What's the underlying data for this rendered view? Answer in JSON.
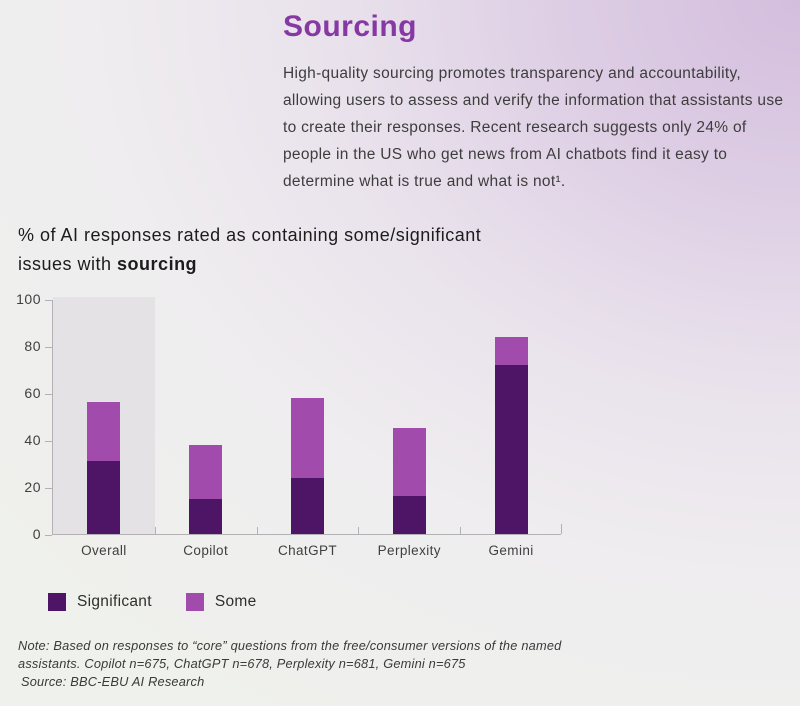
{
  "header": {
    "title": "Sourcing",
    "intro": "High-quality sourcing promotes transparency and accountability, allowing users to assess and verify the information that assistants use to create their responses. Recent research suggests only 24% of people in the US who get news from AI chatbots find it easy to determine what is true and what is not¹."
  },
  "chart_heading": {
    "line1": "% of AI responses rated as containing some/significant",
    "line2_prefix": "issues with ",
    "line2_bold": "sourcing"
  },
  "chart_data": {
    "type": "bar",
    "stacked": true,
    "title": "% of AI responses rated as containing some/significant issues with sourcing",
    "xlabel": "",
    "ylabel": "",
    "categories": [
      "Overall",
      "Copilot",
      "ChatGPT",
      "Perplexity",
      "Gemini"
    ],
    "series": [
      {
        "name": "Significant",
        "color": "#4e1566",
        "values": [
          31,
          15,
          24,
          16,
          72
        ]
      },
      {
        "name": "Some",
        "color": "#a14cad",
        "values": [
          25,
          23,
          34,
          29,
          12
        ]
      }
    ],
    "totals": [
      56,
      38,
      58,
      45,
      84
    ],
    "ylim": [
      0,
      100
    ],
    "yticks": [
      0,
      20,
      40,
      60,
      80,
      100
    ],
    "grid": false,
    "legend_position": "bottom-left",
    "highlighted_category": "Overall",
    "highlight_color": "#e4e2e5"
  },
  "legend": {
    "items": [
      {
        "label": "Significant",
        "color": "#4e1566"
      },
      {
        "label": "Some",
        "color": "#a14cad"
      }
    ]
  },
  "footnote": {
    "note_line1": "Note: Based on responses to “core” questions from the free/consumer versions of the named",
    "note_line2": "assistants. Copilot n=675, ChatGPT n=678, Perplexity n=681, Gemini n=675",
    "source": "Source: BBC-EBU AI Research"
  },
  "colors": {
    "title_purple": "#8638a3",
    "significant": "#4e1566",
    "some": "#a14cad",
    "axis": "#b3b1b5",
    "background_top_right": "#d4bede",
    "background_bottom_left": "#eff1ec"
  }
}
